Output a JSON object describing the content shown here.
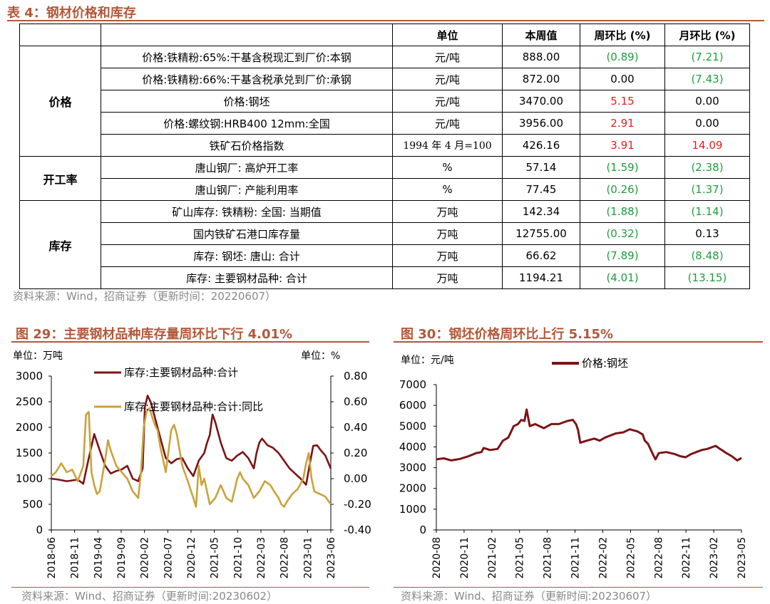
{
  "table": {
    "title": "表 4：钢材价格和库存",
    "headers": [
      "",
      "",
      "单位",
      "本周值",
      "周环比 (%)",
      "月环比 (%)"
    ],
    "groups": [
      {
        "name": "价格",
        "rows": [
          {
            "item": "价格:铁精粉:65%:干基含税现汇到厂价:本钢",
            "unit": "元/吨",
            "value": "888.00",
            "wow": "(0.89)",
            "mom": "(7.21)",
            "wow_c": "neg",
            "mom_c": "neg"
          },
          {
            "item": "价格:铁精粉:66%:干基含税承兑到厂价:承钢",
            "unit": "元/吨",
            "value": "872.00",
            "wow": "0.00",
            "mom": "(7.43)",
            "wow_c": "zero",
            "mom_c": "neg"
          },
          {
            "item": "价格:钢坯",
            "unit": "元/吨",
            "value": "3470.00",
            "wow": "5.15",
            "mom": "0.00",
            "wow_c": "pos",
            "mom_c": "zero"
          },
          {
            "item": "价格:螺纹钢:HRB400 12mm:全国",
            "unit": "元/吨",
            "value": "3956.00",
            "wow": "2.91",
            "mom": "0.00",
            "wow_c": "pos",
            "mom_c": "zero"
          },
          {
            "item": "铁矿石价格指数",
            "unit": "1994 年 4 月=100",
            "value": "426.16",
            "wow": "3.91",
            "mom": "14.09",
            "wow_c": "pos",
            "mom_c": "pos"
          }
        ]
      },
      {
        "name": "开工率",
        "rows": [
          {
            "item": "唐山钢厂: 高炉开工率",
            "unit": "%",
            "value": "57.14",
            "wow": "(1.59)",
            "mom": "(2.38)",
            "wow_c": "neg",
            "mom_c": "neg"
          },
          {
            "item": "唐山钢厂: 产能利用率",
            "unit": "%",
            "value": "77.45",
            "wow": "(0.26)",
            "mom": "(1.37)",
            "wow_c": "neg",
            "mom_c": "neg"
          }
        ]
      },
      {
        "name": "库存",
        "rows": [
          {
            "item": "矿山库存: 铁精粉: 全国: 当期值",
            "unit": "万吨",
            "value": "142.34",
            "wow": "(1.88)",
            "mom": "(1.14)",
            "wow_c": "neg",
            "mom_c": "neg"
          },
          {
            "item": "国内铁矿石港口库存量",
            "unit": "万吨",
            "value": "12755.00",
            "wow": "(0.32)",
            "mom": "0.13",
            "wow_c": "neg",
            "mom_c": "zero"
          },
          {
            "item": "库存: 钢坯: 唐山: 合计",
            "unit": "万吨",
            "value": "66.62",
            "wow": "(7.89)",
            "mom": "(8.48)",
            "wow_c": "neg",
            "mom_c": "neg"
          },
          {
            "item": "库存: 主要钢材品种: 合计",
            "unit": "万吨",
            "value": "1194.21",
            "wow": "(4.01)",
            "mom": "(13.15)",
            "wow_c": "neg",
            "mom_c": "neg"
          }
        ]
      }
    ],
    "source": "资料来源：Wind，招商证券（更新时间：20220607）"
  },
  "colors": {
    "accent": "#b2583a",
    "dark_red": "#7b1416",
    "gold": "#c9a23a",
    "pos": "#e02020",
    "neg": "#1e9e3c"
  },
  "chart_data": [
    {
      "type": "line",
      "title": "图 29：主要钢材品种库存量周环比下行 4.01%",
      "left_unit": "单位：万吨",
      "right_unit": "单位：%",
      "x_ticks": [
        "2018-06",
        "2018-11",
        "2019-04",
        "2019-09",
        "2020-02",
        "2020-07",
        "2020-12",
        "2021-05",
        "2021-10",
        "2022-03",
        "2022-08",
        "2023-01",
        "2023-06"
      ],
      "ylim": [
        0,
        3000
      ],
      "y_ticks": [
        0,
        500,
        1000,
        1500,
        2000,
        2500,
        3000
      ],
      "y2lim": [
        -0.4,
        0.8
      ],
      "y2_ticks": [
        "-0.40",
        "-0.20",
        "0.00",
        "0.20",
        "0.40",
        "0.60",
        "0.80"
      ],
      "x_range": [
        2018.42,
        2023.5
      ],
      "legend": "top",
      "grid": false,
      "source": "资料来源：Wind、招商证券（更新时间:20230602）",
      "series": [
        {
          "name": "库存:主要钢材品种:合计",
          "axis": "left",
          "color": "#7b1416",
          "points": [
            [
              2018.42,
              1000
            ],
            [
              2018.55,
              980
            ],
            [
              2018.7,
              950
            ],
            [
              2018.9,
              980
            ],
            [
              2019.0,
              900
            ],
            [
              2019.1,
              1400
            ],
            [
              2019.2,
              1870
            ],
            [
              2019.3,
              1550
            ],
            [
              2019.4,
              1250
            ],
            [
              2019.5,
              1100
            ],
            [
              2019.6,
              1150
            ],
            [
              2019.7,
              1180
            ],
            [
              2019.8,
              1250
            ],
            [
              2019.9,
              1000
            ],
            [
              2020.0,
              950
            ],
            [
              2020.08,
              1200
            ],
            [
              2020.12,
              2400
            ],
            [
              2020.17,
              2620
            ],
            [
              2020.23,
              2480
            ],
            [
              2020.3,
              2200
            ],
            [
              2020.4,
              1800
            ],
            [
              2020.5,
              1400
            ],
            [
              2020.6,
              1300
            ],
            [
              2020.7,
              1380
            ],
            [
              2020.8,
              1400
            ],
            [
              2020.9,
              1200
            ],
            [
              2021.0,
              1050
            ],
            [
              2021.1,
              1350
            ],
            [
              2021.2,
              1500
            ],
            [
              2021.25,
              1700
            ],
            [
              2021.3,
              1850
            ],
            [
              2021.35,
              2250
            ],
            [
              2021.4,
              2100
            ],
            [
              2021.5,
              1700
            ],
            [
              2021.6,
              1400
            ],
            [
              2021.7,
              1350
            ],
            [
              2021.8,
              1450
            ],
            [
              2021.9,
              1520
            ],
            [
              2022.0,
              1400
            ],
            [
              2022.05,
              1300
            ],
            [
              2022.1,
              1200
            ],
            [
              2022.15,
              1500
            ],
            [
              2022.2,
              1700
            ],
            [
              2022.25,
              1780
            ],
            [
              2022.35,
              1650
            ],
            [
              2022.45,
              1600
            ],
            [
              2022.55,
              1500
            ],
            [
              2022.65,
              1350
            ],
            [
              2022.75,
              1200
            ],
            [
              2022.85,
              1100
            ],
            [
              2022.95,
              1000
            ],
            [
              2023.05,
              880
            ],
            [
              2023.12,
              1300
            ],
            [
              2023.18,
              1640
            ],
            [
              2023.25,
              1650
            ],
            [
              2023.32,
              1550
            ],
            [
              2023.4,
              1450
            ],
            [
              2023.5,
              1194
            ]
          ]
        },
        {
          "name": "库存:主要钢材品种:合计:同比",
          "axis": "right",
          "color": "#c9a23a",
          "points": [
            [
              2018.42,
              0.02
            ],
            [
              2018.5,
              0.05
            ],
            [
              2018.6,
              0.12
            ],
            [
              2018.7,
              0.05
            ],
            [
              2018.8,
              0.07
            ],
            [
              2018.9,
              -0.02
            ],
            [
              2019.0,
              0.1
            ],
            [
              2019.05,
              0.5
            ],
            [
              2019.1,
              0.52
            ],
            [
              2019.15,
              0.05
            ],
            [
              2019.2,
              -0.05
            ],
            [
              2019.25,
              -0.12
            ],
            [
              2019.3,
              -0.1
            ],
            [
              2019.4,
              0.15
            ],
            [
              2019.45,
              0.3
            ],
            [
              2019.5,
              0.22
            ],
            [
              2019.6,
              0.1
            ],
            [
              2019.7,
              0.05
            ],
            [
              2019.8,
              0.0
            ],
            [
              2019.9,
              -0.1
            ],
            [
              2020.0,
              -0.15
            ],
            [
              2020.05,
              0.05
            ],
            [
              2020.1,
              0.4
            ],
            [
              2020.15,
              0.52
            ],
            [
              2020.2,
              0.55
            ],
            [
              2020.3,
              0.42
            ],
            [
              2020.35,
              0.38
            ],
            [
              2020.4,
              0.25
            ],
            [
              2020.5,
              0.05
            ],
            [
              2020.6,
              0.38
            ],
            [
              2020.65,
              0.42
            ],
            [
              2020.7,
              0.35
            ],
            [
              2020.8,
              0.1
            ],
            [
              2020.9,
              -0.02
            ],
            [
              2021.0,
              -0.15
            ],
            [
              2021.05,
              -0.22
            ],
            [
              2021.1,
              0.1
            ],
            [
              2021.15,
              -0.05
            ],
            [
              2021.2,
              0.0
            ],
            [
              2021.3,
              -0.2
            ],
            [
              2021.4,
              -0.15
            ],
            [
              2021.5,
              -0.05
            ],
            [
              2021.6,
              -0.15
            ],
            [
              2021.7,
              -0.18
            ],
            [
              2021.8,
              0.0
            ],
            [
              2021.85,
              0.05
            ],
            [
              2021.9,
              0.0
            ],
            [
              2022.0,
              -0.05
            ],
            [
              2022.1,
              -0.15
            ],
            [
              2022.2,
              -0.1
            ],
            [
              2022.3,
              -0.02
            ],
            [
              2022.4,
              -0.05
            ],
            [
              2022.5,
              -0.12
            ],
            [
              2022.55,
              -0.15
            ],
            [
              2022.6,
              -0.2
            ],
            [
              2022.65,
              -0.22
            ],
            [
              2022.7,
              -0.18
            ],
            [
              2022.8,
              -0.12
            ],
            [
              2022.9,
              -0.08
            ],
            [
              2023.0,
              0.0
            ],
            [
              2023.05,
              0.12
            ],
            [
              2023.1,
              0.2
            ],
            [
              2023.15,
              0.0
            ],
            [
              2023.2,
              -0.1
            ],
            [
              2023.3,
              -0.12
            ],
            [
              2023.4,
              -0.14
            ],
            [
              2023.5,
              -0.2
            ]
          ]
        }
      ]
    },
    {
      "type": "line",
      "title": "图 30：钢坯价格周环比上行 5.15%",
      "left_unit": "单位：元/吨",
      "x_ticks": [
        "2020-08",
        "2020-11",
        "2021-02",
        "2021-05",
        "2021-08",
        "2021-11",
        "2022-02",
        "2022-05",
        "2022-08",
        "2022-11",
        "2023-02",
        "2023-05"
      ],
      "ylim": [
        0,
        7000
      ],
      "y_ticks": [
        0,
        1000,
        2000,
        3000,
        4000,
        5000,
        6000,
        7000
      ],
      "x_range": [
        2020.58,
        2023.42
      ],
      "legend": "top",
      "grid": false,
      "source": "资料来源：Wind、招商证券（更新时间:20230607）",
      "series": [
        {
          "name": "价格:钢坯",
          "axis": "left",
          "color": "#7b1416",
          "points": [
            [
              2020.58,
              3400
            ],
            [
              2020.65,
              3450
            ],
            [
              2020.72,
              3350
            ],
            [
              2020.8,
              3420
            ],
            [
              2020.88,
              3550
            ],
            [
              2020.95,
              3700
            ],
            [
              2021.0,
              3750
            ],
            [
              2021.02,
              3950
            ],
            [
              2021.08,
              3850
            ],
            [
              2021.15,
              3900
            ],
            [
              2021.2,
              4300
            ],
            [
              2021.25,
              4450
            ],
            [
              2021.3,
              5000
            ],
            [
              2021.34,
              5100
            ],
            [
              2021.37,
              5300
            ],
            [
              2021.4,
              5250
            ],
            [
              2021.42,
              5800
            ],
            [
              2021.45,
              5000
            ],
            [
              2021.5,
              5100
            ],
            [
              2021.58,
              4900
            ],
            [
              2021.65,
              5100
            ],
            [
              2021.72,
              5100
            ],
            [
              2021.8,
              5250
            ],
            [
              2021.85,
              5300
            ],
            [
              2021.88,
              5100
            ],
            [
              2021.9,
              4800
            ],
            [
              2021.92,
              4200
            ],
            [
              2021.98,
              4300
            ],
            [
              2022.05,
              4400
            ],
            [
              2022.1,
              4300
            ],
            [
              2022.15,
              4450
            ],
            [
              2022.25,
              4650
            ],
            [
              2022.32,
              4700
            ],
            [
              2022.38,
              4850
            ],
            [
              2022.45,
              4750
            ],
            [
              2022.5,
              4600
            ],
            [
              2022.52,
              4300
            ],
            [
              2022.55,
              4150
            ],
            [
              2022.6,
              3600
            ],
            [
              2022.62,
              3400
            ],
            [
              2022.65,
              3700
            ],
            [
              2022.72,
              3750
            ],
            [
              2022.8,
              3650
            ],
            [
              2022.85,
              3550
            ],
            [
              2022.9,
              3500
            ],
            [
              2022.95,
              3650
            ],
            [
              2023.0,
              3750
            ],
            [
              2023.05,
              3850
            ],
            [
              2023.1,
              3900
            ],
            [
              2023.18,
              4050
            ],
            [
              2023.22,
              3900
            ],
            [
              2023.28,
              3700
            ],
            [
              2023.33,
              3550
            ],
            [
              2023.38,
              3350
            ],
            [
              2023.42,
              3470
            ]
          ]
        }
      ]
    }
  ]
}
